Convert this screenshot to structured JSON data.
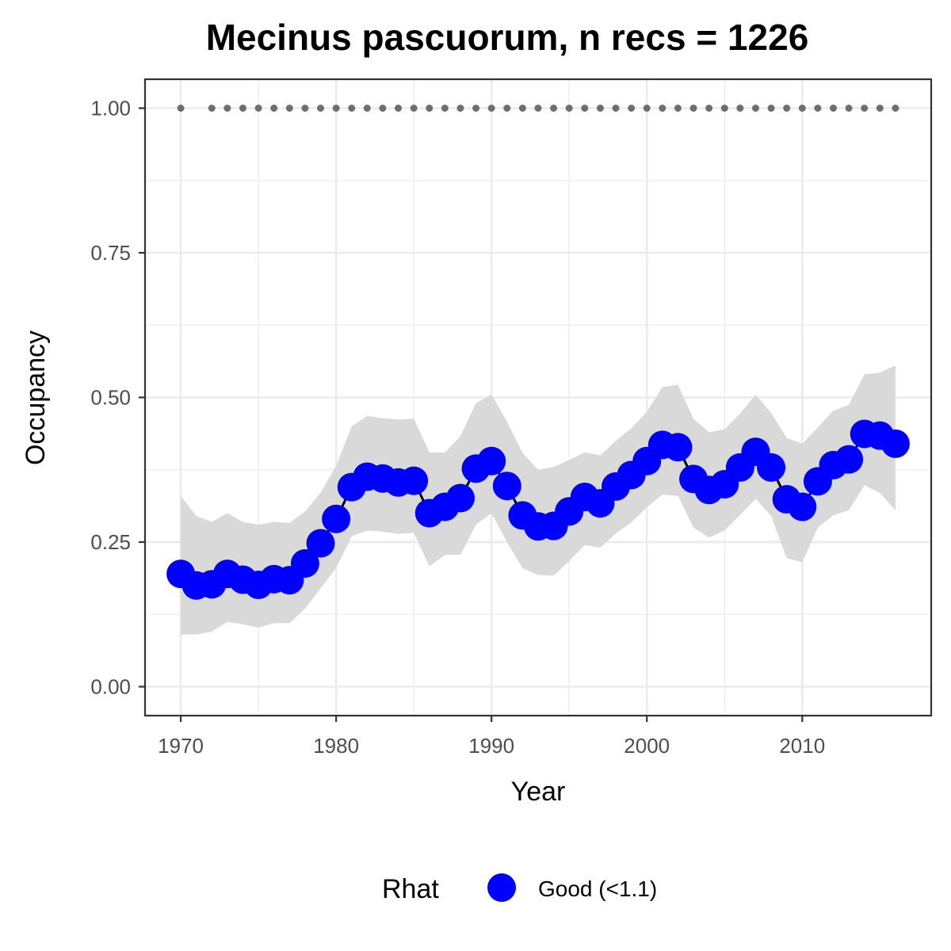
{
  "chart_data": {
    "type": "line",
    "title": "Mecinus pascuorum, n recs = 1226",
    "xlabel": "Year",
    "ylabel": "Occupancy",
    "xlim": [
      1967.7,
      2018.3
    ],
    "ylim": [
      -0.05,
      1.05
    ],
    "x_ticks": [
      1970,
      1980,
      1990,
      2000,
      2010
    ],
    "x_tick_labels": [
      "1970",
      "1980",
      "1990",
      "2000",
      "2010"
    ],
    "y_ticks": [
      0.0,
      0.25,
      0.5,
      0.75,
      1.0
    ],
    "y_tick_labels": [
      "0.00",
      "0.25",
      "0.50",
      "0.75",
      "1.00"
    ],
    "grid": true,
    "legend": {
      "title": "Rhat",
      "position": "bottom",
      "entries": [
        "Good (<1.1)"
      ]
    },
    "colors": {
      "point": "#0000ff",
      "line": "#000000",
      "ribbon": "#d9d9d9",
      "record_dots": "#6e6e6e",
      "grid": "#ebebeb",
      "panel_border": "#333333"
    },
    "record_years": [
      1970,
      1972,
      1973,
      1974,
      1975,
      1976,
      1977,
      1978,
      1979,
      1980,
      1981,
      1982,
      1983,
      1984,
      1985,
      1986,
      1987,
      1988,
      1989,
      1990,
      1991,
      1992,
      1993,
      1994,
      1995,
      1996,
      1997,
      1998,
      1999,
      2000,
      2001,
      2002,
      2003,
      2004,
      2005,
      2006,
      2007,
      2008,
      2009,
      2010,
      2011,
      2012,
      2013,
      2014,
      2015,
      2016
    ],
    "record_value": 1.0,
    "series": [
      {
        "name": "Good (<1.1)",
        "x": [
          1970,
          1971,
          1972,
          1973,
          1974,
          1975,
          1976,
          1977,
          1978,
          1979,
          1980,
          1981,
          1982,
          1983,
          1984,
          1985,
          1986,
          1987,
          1988,
          1989,
          1990,
          1991,
          1992,
          1993,
          1994,
          1995,
          1996,
          1997,
          1998,
          1999,
          2000,
          2001,
          2002,
          2003,
          2004,
          2005,
          2006,
          2007,
          2008,
          2009,
          2010,
          2011,
          2012,
          2013,
          2014,
          2015,
          2016
        ],
        "y": [
          0.195,
          0.175,
          0.177,
          0.195,
          0.185,
          0.176,
          0.186,
          0.184,
          0.213,
          0.248,
          0.29,
          0.345,
          0.363,
          0.36,
          0.353,
          0.356,
          0.3,
          0.311,
          0.326,
          0.377,
          0.39,
          0.347,
          0.296,
          0.277,
          0.278,
          0.303,
          0.328,
          0.317,
          0.346,
          0.366,
          0.39,
          0.418,
          0.414,
          0.359,
          0.34,
          0.35,
          0.379,
          0.406,
          0.379,
          0.324,
          0.311,
          0.355,
          0.383,
          0.393,
          0.437,
          0.434,
          0.42
        ],
        "lower": [
          0.09,
          0.09,
          0.095,
          0.112,
          0.108,
          0.102,
          0.11,
          0.11,
          0.135,
          0.17,
          0.205,
          0.26,
          0.27,
          0.268,
          0.264,
          0.266,
          0.208,
          0.228,
          0.228,
          0.28,
          0.3,
          0.25,
          0.205,
          0.193,
          0.192,
          0.217,
          0.245,
          0.24,
          0.265,
          0.284,
          0.31,
          0.332,
          0.33,
          0.275,
          0.258,
          0.27,
          0.297,
          0.325,
          0.295,
          0.222,
          0.215,
          0.275,
          0.296,
          0.305,
          0.348,
          0.335,
          0.305
        ],
        "upper": [
          0.33,
          0.295,
          0.285,
          0.3,
          0.285,
          0.28,
          0.285,
          0.283,
          0.303,
          0.335,
          0.382,
          0.45,
          0.468,
          0.464,
          0.462,
          0.463,
          0.405,
          0.405,
          0.433,
          0.49,
          0.505,
          0.458,
          0.404,
          0.375,
          0.38,
          0.392,
          0.405,
          0.4,
          0.425,
          0.447,
          0.475,
          0.518,
          0.522,
          0.463,
          0.44,
          0.445,
          0.472,
          0.505,
          0.473,
          0.43,
          0.42,
          0.448,
          0.477,
          0.487,
          0.54,
          0.543,
          0.555
        ]
      }
    ]
  }
}
